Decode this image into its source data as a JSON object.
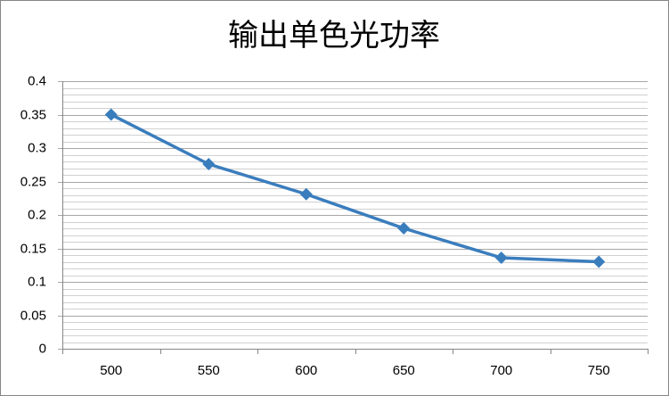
{
  "chart_data": {
    "type": "line",
    "title": "输出单色光功率",
    "categories": [
      "500",
      "550",
      "600",
      "650",
      "700",
      "750"
    ],
    "series": [
      {
        "name": "输出单色光功率",
        "color": "#3a7dbd",
        "values": [
          0.35,
          0.276,
          0.231,
          0.18,
          0.136,
          0.13
        ]
      }
    ],
    "ylim": [
      0,
      0.4
    ],
    "yticks": [
      0,
      0.05,
      0.1,
      0.15,
      0.2,
      0.25,
      0.3,
      0.35,
      0.4
    ],
    "minor_yticks": [
      0.01,
      0.02,
      0.03,
      0.04,
      0.06,
      0.07,
      0.08,
      0.09,
      0.11,
      0.12,
      0.13,
      0.14,
      0.16,
      0.17,
      0.18,
      0.19,
      0.21,
      0.22,
      0.23,
      0.24,
      0.26,
      0.27,
      0.28,
      0.29,
      0.31,
      0.32,
      0.33,
      0.34,
      0.36,
      0.37,
      0.38,
      0.39
    ],
    "grid": true,
    "marker": "diamond"
  }
}
